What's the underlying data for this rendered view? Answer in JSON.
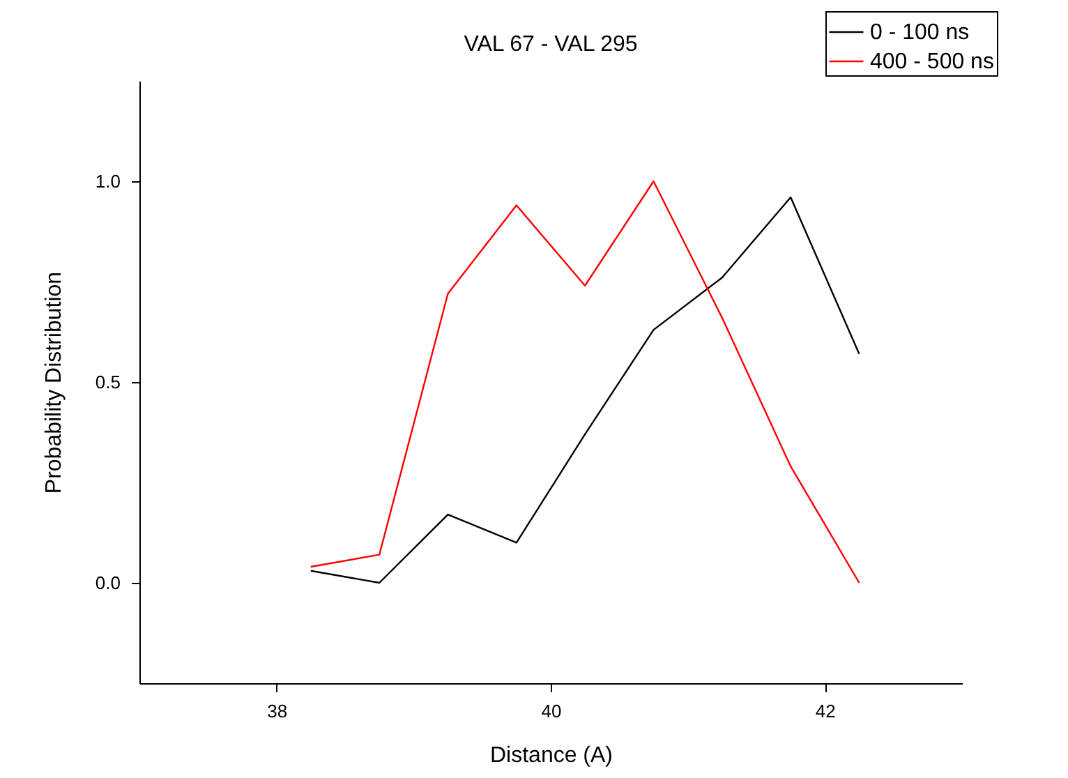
{
  "chart_data": {
    "type": "line",
    "title": "VAL 67 - VAL 295",
    "xlabel": "Distance (A)",
    "ylabel": "Probability Distribution",
    "x": [
      38.25,
      38.75,
      39.25,
      39.75,
      40.25,
      40.75,
      41.25,
      41.75,
      42.25
    ],
    "series": [
      {
        "name": "0 - 100 ns",
        "color": "#000000",
        "values": [
          0.03,
          0.0,
          0.17,
          0.1,
          0.37,
          0.63,
          0.76,
          0.96,
          0.57
        ]
      },
      {
        "name": "400 - 500 ns",
        "color": "#ff0000",
        "values": [
          0.04,
          0.07,
          0.72,
          0.94,
          0.74,
          1.0,
          0.66,
          0.29,
          0.0
        ]
      }
    ],
    "xlim": [
      37,
      43
    ],
    "xticks": [
      38,
      40,
      42
    ],
    "ylim": [
      -0.25,
      1.25
    ],
    "yticks": [
      {
        "value": 0,
        "label": "0.0"
      },
      {
        "value": 0.5,
        "label": "0.5"
      },
      {
        "value": 1,
        "label": "1.0"
      }
    ],
    "grid": false,
    "legend": "top right",
    "marker": "none",
    "line_style": "solid"
  }
}
